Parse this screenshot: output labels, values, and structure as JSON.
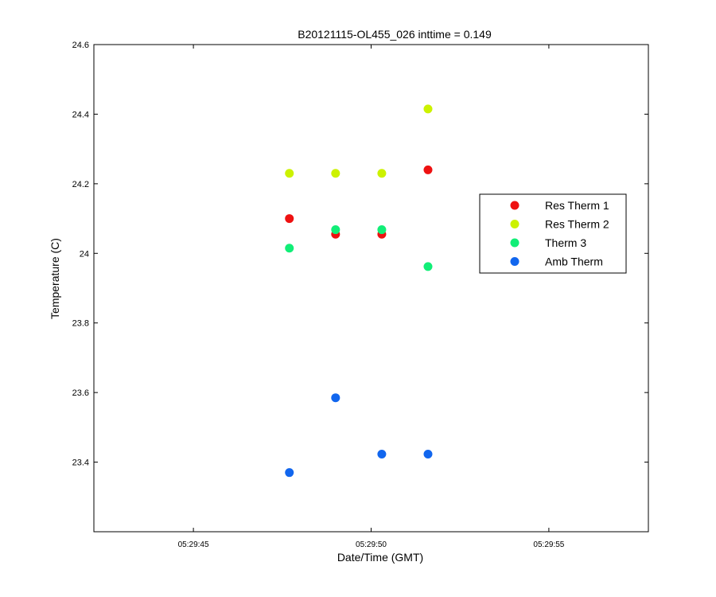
{
  "chart_data": {
    "type": "scatter",
    "title": "B20121115-OL455_026 inttime = 0.149",
    "xlabel": "Date/Time (GMT)",
    "ylabel": "Temperature (C)",
    "xlim": [
      "05:29:42.2",
      "05:29:57.8"
    ],
    "ylim": [
      23.2,
      24.6
    ],
    "xticks": [
      "05:29:45",
      "05:29:50",
      "05:29:55"
    ],
    "yticks": [
      "23.4",
      "23.6",
      "23.8",
      "24",
      "24.2",
      "24.4",
      "24.6"
    ],
    "grid": false,
    "legend_position": "right",
    "series": [
      {
        "name": "Res Therm 1",
        "color": "#ee1111",
        "points": [
          {
            "x": "05:29:47.7",
            "y": 24.1
          },
          {
            "x": "05:29:49.0",
            "y": 24.055
          },
          {
            "x": "05:29:50.3",
            "y": 24.055
          },
          {
            "x": "05:29:51.6",
            "y": 24.24
          }
        ]
      },
      {
        "name": "Res Therm 2",
        "color": "#ccf200",
        "points": [
          {
            "x": "05:29:47.7",
            "y": 24.23
          },
          {
            "x": "05:29:49.0",
            "y": 24.23
          },
          {
            "x": "05:29:50.3",
            "y": 24.23
          },
          {
            "x": "05:29:51.6",
            "y": 24.415
          }
        ]
      },
      {
        "name": "Therm 3",
        "color": "#11ee77",
        "points": [
          {
            "x": "05:29:47.7",
            "y": 24.015
          },
          {
            "x": "05:29:49.0",
            "y": 24.068
          },
          {
            "x": "05:29:50.3",
            "y": 24.068
          },
          {
            "x": "05:29:51.6",
            "y": 23.962
          }
        ]
      },
      {
        "name": "Amb Therm",
        "color": "#1166ee",
        "points": [
          {
            "x": "05:29:47.7",
            "y": 23.37
          },
          {
            "x": "05:29:49.0",
            "y": 23.585
          },
          {
            "x": "05:29:50.3",
            "y": 23.423
          },
          {
            "x": "05:29:51.6",
            "y": 23.423
          }
        ]
      }
    ]
  }
}
